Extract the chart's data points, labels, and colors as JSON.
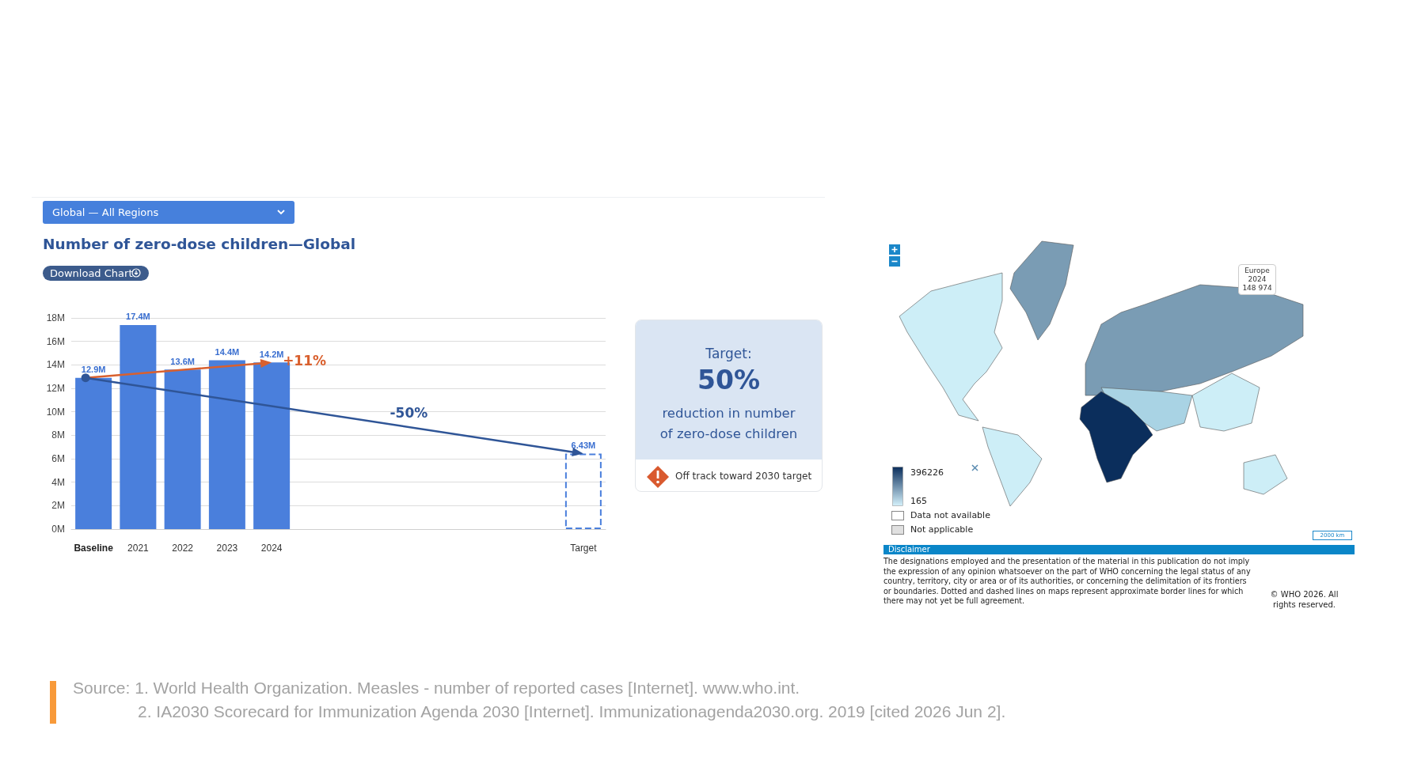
{
  "chart_data": [
    {
      "type": "bar",
      "title": "Number of zero-dose children—Global",
      "categories": [
        "Baseline",
        "2021",
        "2022",
        "2023",
        "2024",
        null,
        null,
        null,
        null,
        null,
        null,
        "Target"
      ],
      "series": [
        {
          "color": "#4a7fdc",
          "values": [
            12.9,
            17.4,
            13.6,
            14.4,
            14.2,
            null,
            null,
            null,
            null,
            null,
            null,
            null
          ],
          "value_labels": [
            "12.9M",
            "17.4M",
            "13.6M",
            "14.4M",
            "14.2M",
            null,
            null,
            null,
            null,
            null,
            null,
            null
          ]
        },
        {
          "color": "#4a7fdc",
          "line_style": "dashed",
          "values": [
            null,
            null,
            null,
            null,
            null,
            null,
            null,
            null,
            null,
            null,
            null,
            6.43
          ],
          "value_labels": [
            null,
            null,
            null,
            null,
            null,
            null,
            null,
            null,
            null,
            null,
            null,
            "6.43M"
          ]
        }
      ],
      "ylim": [
        0,
        18
      ],
      "yticks": [
        {
          "value": 0,
          "label": "0M"
        },
        {
          "value": 2,
          "label": "2M"
        },
        {
          "value": 4,
          "label": "4M"
        },
        {
          "value": 6,
          "label": "6M"
        },
        {
          "value": 8,
          "label": "8M"
        },
        {
          "value": 10,
          "label": "10M"
        },
        {
          "value": 12,
          "label": "12M"
        },
        {
          "value": 14,
          "label": "14M"
        },
        {
          "value": 16,
          "label": "16M"
        },
        {
          "value": 18,
          "label": "18M"
        }
      ],
      "grid": "y",
      "annotations": [
        {
          "text": "+11%",
          "x": "2024",
          "y": 14.2
        },
        "-50%",
        "Global — All Regions",
        "Download Chart",
        "Source: 1. World Health Organization. Measles - number of reported cases [Internet]. www.who.int.",
        "2. IA2030 Scorecard for Immunization Agenda 2030 [Internet]. Immunizationagenda2030.org. 2019 [cited 2026 Jun 2]."
      ]
    },
    {
      "type": "other",
      "title": "Target:",
      "annotations": [
        "50%",
        "reduction in number of zero-dose children",
        "Off track toward 2030 target"
      ]
    },
    {
      "type": "other",
      "annotations": [
        "396226",
        "165",
        "Data not available",
        "Not applicable",
        "Europe\n2024\n148 974",
        "2000 km",
        "Disclaimer",
        "The designations employed and the presentation of the material in this publication do not imply the expression of any opinion whatsoever on the part of WHO concerning the legal status of any country, territory, city or area or of its authorities, or concerning the delimitation of its frontiers or boundaries. Dotted and dashed lines on maps represent approximate border lines for which there may not yet be full agreement.",
        "© WHO 2026. All rights reserved."
      ]
    }
  ]
}
